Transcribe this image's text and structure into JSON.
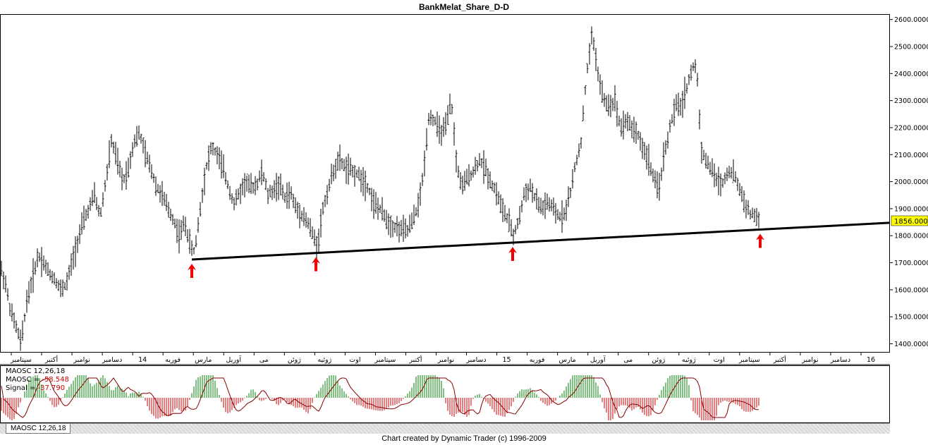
{
  "chart_data": {
    "type": "bar",
    "title": "BankMelat_Share_D-D",
    "y_axis": {
      "ylim": [
        1370,
        2620
      ],
      "ticks": [
        1400,
        1500,
        1600,
        1700,
        1800,
        1900,
        2000,
        2100,
        2200,
        2300,
        2400,
        2500,
        2600
      ],
      "tick_labels": [
        "1400.0000",
        "1500.0000",
        "1600.0000",
        "1700.0000",
        "1800.0000",
        "1900.0000",
        "2000.0000",
        "2100.0000",
        "2200.0000",
        "2300.0000",
        "2400.0000",
        "2500.0000",
        "2600.0000"
      ],
      "last_price_label": "1856.0000",
      "last_price": 1856
    },
    "x_axis": {
      "labels": [
        "سپتامبر",
        "أكتبر",
        "نوامبر",
        "دسامبر",
        "14",
        "فوريه",
        "مارس",
        "آوريل",
        "مى",
        "ژوئن",
        "ژوئيه",
        "اوت",
        "سپتامبر",
        "أكتبر",
        "نوامبر",
        "دسامبر",
        "15",
        "فوريه",
        "مارس",
        "آوريل",
        "مى",
        "ژوئن",
        "ژوئيه",
        "اوت",
        "سپتامبر",
        "أكتبر",
        "نوامبر",
        "دسامبر",
        "16"
      ]
    },
    "price_path": [
      [
        0,
        1690
      ],
      [
        8,
        1620
      ],
      [
        15,
        1520
      ],
      [
        22,
        1470
      ],
      [
        30,
        1400
      ],
      [
        38,
        1560
      ],
      [
        46,
        1640
      ],
      [
        54,
        1730
      ],
      [
        62,
        1700
      ],
      [
        70,
        1660
      ],
      [
        78,
        1640
      ],
      [
        86,
        1600
      ],
      [
        94,
        1620
      ],
      [
        102,
        1700
      ],
      [
        110,
        1780
      ],
      [
        118,
        1850
      ],
      [
        126,
        1900
      ],
      [
        134,
        1950
      ],
      [
        142,
        1870
      ],
      [
        150,
        2000
      ],
      [
        158,
        2150
      ],
      [
        166,
        2080
      ],
      [
        174,
        2000
      ],
      [
        182,
        2050
      ],
      [
        190,
        2150
      ],
      [
        198,
        2180
      ],
      [
        206,
        2100
      ],
      [
        214,
        2050
      ],
      [
        222,
        1980
      ],
      [
        230,
        1950
      ],
      [
        238,
        1900
      ],
      [
        246,
        1860
      ],
      [
        254,
        1800
      ],
      [
        262,
        1850
      ],
      [
        270,
        1760
      ],
      [
        276,
        1740
      ],
      [
        284,
        1900
      ],
      [
        292,
        2050
      ],
      [
        300,
        2130
      ],
      [
        308,
        2100
      ],
      [
        316,
        2050
      ],
      [
        324,
        1980
      ],
      [
        332,
        1920
      ],
      [
        340,
        1960
      ],
      [
        348,
        2000
      ],
      [
        356,
        1980
      ],
      [
        364,
        1990
      ],
      [
        372,
        2040
      ],
      [
        380,
        1950
      ],
      [
        388,
        1970
      ],
      [
        396,
        1990
      ],
      [
        404,
        1940
      ],
      [
        412,
        1960
      ],
      [
        420,
        1900
      ],
      [
        428,
        1880
      ],
      [
        436,
        1850
      ],
      [
        444,
        1800
      ],
      [
        450,
        1760
      ],
      [
        458,
        1900
      ],
      [
        466,
        1980
      ],
      [
        474,
        2050
      ],
      [
        482,
        2080
      ],
      [
        490,
        2050
      ],
      [
        498,
        2040
      ],
      [
        506,
        2030
      ],
      [
        514,
        2010
      ],
      [
        522,
        1980
      ],
      [
        530,
        1920
      ],
      [
        538,
        1900
      ],
      [
        546,
        1870
      ],
      [
        554,
        1840
      ],
      [
        562,
        1830
      ],
      [
        570,
        1820
      ],
      [
        578,
        1820
      ],
      [
        586,
        1860
      ],
      [
        594,
        1920
      ],
      [
        600,
        2020
      ],
      [
        608,
        2240
      ],
      [
        616,
        2230
      ],
      [
        624,
        2180
      ],
      [
        632,
        2200
      ],
      [
        640,
        2300
      ],
      [
        648,
        2050
      ],
      [
        656,
        1980
      ],
      [
        664,
        2020
      ],
      [
        672,
        2040
      ],
      [
        680,
        2080
      ],
      [
        688,
        2050
      ],
      [
        696,
        2000
      ],
      [
        704,
        1960
      ],
      [
        712,
        1900
      ],
      [
        720,
        1860
      ],
      [
        728,
        1800
      ],
      [
        736,
        1860
      ],
      [
        744,
        1960
      ],
      [
        752,
        1980
      ],
      [
        760,
        1930
      ],
      [
        768,
        1900
      ],
      [
        776,
        1920
      ],
      [
        784,
        1900
      ],
      [
        792,
        1870
      ],
      [
        800,
        1880
      ],
      [
        808,
        1950
      ],
      [
        816,
        2060
      ],
      [
        824,
        2150
      ],
      [
        832,
        2400
      ],
      [
        840,
        2550
      ],
      [
        848,
        2400
      ],
      [
        856,
        2300
      ],
      [
        864,
        2280
      ],
      [
        872,
        2300
      ],
      [
        880,
        2200
      ],
      [
        888,
        2230
      ],
      [
        896,
        2200
      ],
      [
        904,
        2180
      ],
      [
        912,
        2120
      ],
      [
        920,
        2080
      ],
      [
        928,
        2000
      ],
      [
        934,
        1970
      ],
      [
        942,
        2100
      ],
      [
        950,
        2200
      ],
      [
        958,
        2280
      ],
      [
        966,
        2280
      ],
      [
        974,
        2350
      ],
      [
        982,
        2420
      ],
      [
        988,
        2430
      ],
      [
        994,
        2130
      ],
      [
        1000,
        2080
      ],
      [
        1008,
        2050
      ],
      [
        1016,
        2010
      ],
      [
        1024,
        1990
      ],
      [
        1032,
        2040
      ],
      [
        1040,
        2030
      ],
      [
        1048,
        1980
      ],
      [
        1056,
        1920
      ],
      [
        1064,
        1880
      ],
      [
        1072,
        1870
      ],
      [
        1078,
        1856
      ]
    ],
    "support_line": {
      "x0": 272,
      "y0": 1712,
      "x1": 1262,
      "y1": 1848,
      "color": "#000000"
    },
    "arrow_xs": [
      272,
      448,
      727,
      1078
    ],
    "arrow_color": "#ee0000",
    "indicator": {
      "name": "MAOSC 12,26,18",
      "header": "MAOSC 12,26,18",
      "maosc_label": "MAOSC = ",
      "maosc_value": "-58.548",
      "signal_label": "Signal = ",
      "signal_value": "-37.790",
      "pos_color": "#008000",
      "neg_color": "#cc0000",
      "signal_color": "#880000"
    },
    "tab_label": "MAOSC 12,26,18"
  },
  "footer": "Chart created by Dynamic Trader  (c) 1996-2009"
}
